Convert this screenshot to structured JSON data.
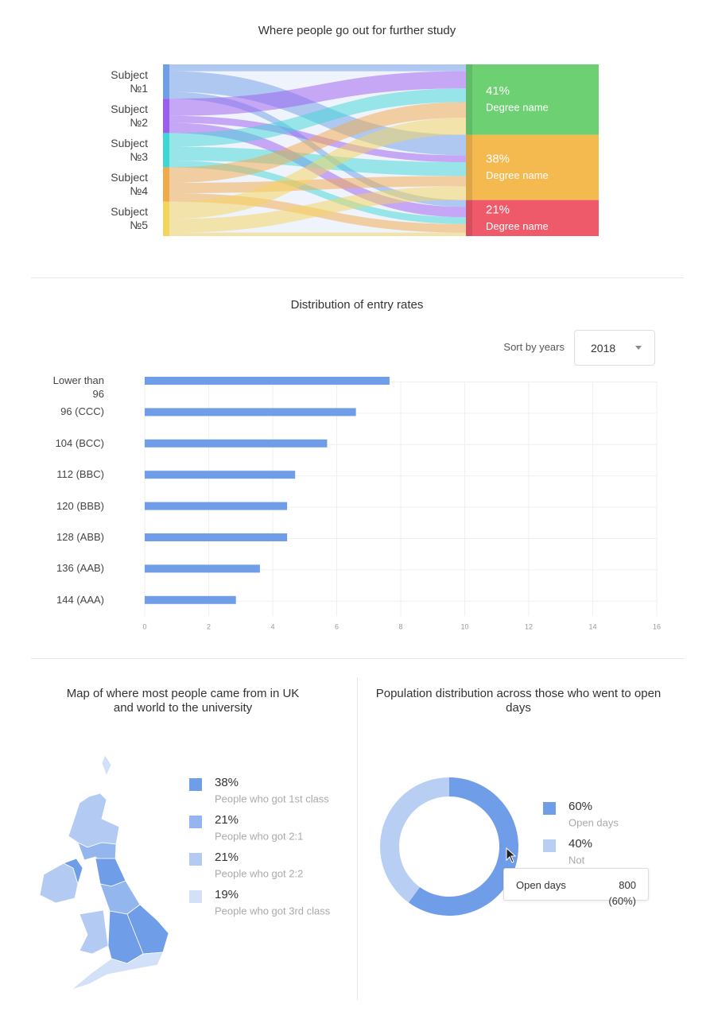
{
  "chart_data": [
    {
      "type": "sankey",
      "title": "Where people go out for further study",
      "sources": [
        "Subject №1",
        "Subject №2",
        "Subject №3",
        "Subject №4",
        "Subject №5"
      ],
      "source_colors": [
        "#6f9de8",
        "#9b5cf0",
        "#3fd6d8",
        "#f1a94a",
        "#f5d45c"
      ],
      "targets": [
        "Degree name",
        "Degree name",
        "Degree name"
      ],
      "values": [
        41,
        38,
        21
      ],
      "value_labels": [
        "41%",
        "38%",
        "21%"
      ],
      "target_colors": [
        "#6dd174",
        "#f4ba4f",
        "#ee5a69"
      ],
      "links": [
        {
          "source": 0,
          "target": 0,
          "value": 4
        },
        {
          "source": 0,
          "target": 1,
          "value": 12
        },
        {
          "source": 0,
          "target": 2,
          "value": 4
        },
        {
          "source": 1,
          "target": 0,
          "value": 10
        },
        {
          "source": 1,
          "target": 1,
          "value": 4
        },
        {
          "source": 1,
          "target": 2,
          "value": 6
        },
        {
          "source": 2,
          "target": 0,
          "value": 8
        },
        {
          "source": 2,
          "target": 1,
          "value": 8
        },
        {
          "source": 2,
          "target": 2,
          "value": 4
        },
        {
          "source": 3,
          "target": 0,
          "value": 9
        },
        {
          "source": 3,
          "target": 1,
          "value": 6
        },
        {
          "source": 3,
          "target": 2,
          "value": 5
        },
        {
          "source": 4,
          "target": 0,
          "value": 10
        },
        {
          "source": 4,
          "target": 1,
          "value": 8
        },
        {
          "source": 4,
          "target": 2,
          "value": 2
        }
      ]
    },
    {
      "type": "bar",
      "title": "Distribution of entry rates",
      "control": {
        "label": "Sort by years",
        "selected": "2018"
      },
      "categories": [
        "Lower than 96",
        "96 (CCC)",
        "104 (BCC)",
        "112 (BBC)",
        "120 (BBB)",
        "128 (ABB)",
        "136 (AAB)",
        "144 (AAA)"
      ],
      "values": [
        7.65,
        6.6,
        5.7,
        4.7,
        4.45,
        4.45,
        3.6,
        2.85
      ],
      "color": "#6f9de8",
      "xlim": [
        0,
        16
      ],
      "xticks": [
        0,
        2,
        4,
        6,
        8,
        10,
        12,
        14,
        16
      ],
      "grid": true
    },
    {
      "type": "choropleth",
      "title": "Map of where most people came from in UK and world to the university",
      "categories": [
        "People who got 1st class",
        "People who got 2:1",
        "People who got 2:2",
        "People who got 3rd class"
      ],
      "values": [
        38,
        21,
        21,
        19
      ],
      "value_labels": [
        "38%",
        "21%",
        "21%",
        "19%"
      ],
      "colors": [
        "#6f9de8",
        "#94b6ef",
        "#b3cbf3",
        "#d2e0f8"
      ]
    },
    {
      "type": "donut",
      "title": "Population distribution across those who went to open days",
      "categories": [
        "Open days",
        "Not"
      ],
      "values": [
        60,
        40
      ],
      "value_labels": [
        "60%",
        "40%"
      ],
      "colors": [
        "#6f9de8",
        "#b8cff3"
      ],
      "tooltip": {
        "name": "Open days",
        "value": 800,
        "share": "(60%)"
      }
    }
  ]
}
